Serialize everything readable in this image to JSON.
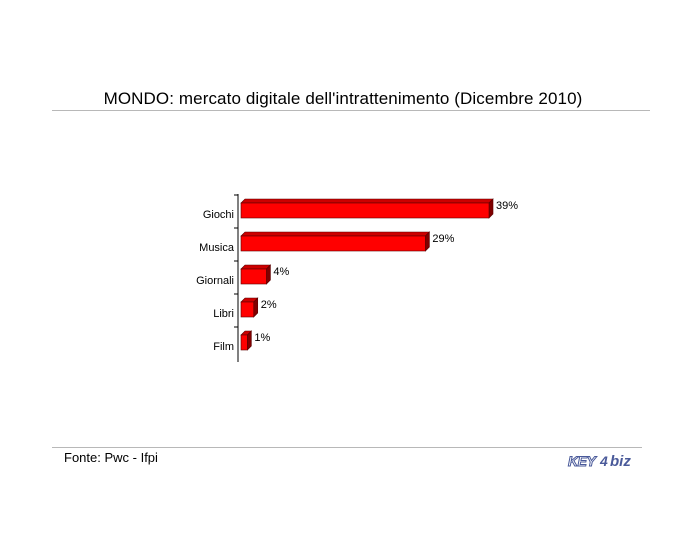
{
  "title": "MONDO: mercato digitale dell'intrattenimento (Dicembre 2010)",
  "source": "Fonte: Pwc - Ifpi",
  "logo": {
    "key": "KEY",
    "num": "4",
    "biz": "biz"
  },
  "colors": {
    "bar_front": "#ff0000",
    "bar_top": "#cc0000",
    "bar_side": "#800000",
    "outline": "#5a0000"
  },
  "chart_data": {
    "type": "bar",
    "orientation": "horizontal",
    "categories": [
      "Giochi",
      "Musica",
      "Giornali",
      "Libri",
      "Film"
    ],
    "values": [
      39,
      29,
      4,
      2,
      1
    ],
    "labels": [
      "39%",
      "29%",
      "4%",
      "2%",
      "1%"
    ],
    "xlim": [
      0,
      39
    ]
  }
}
